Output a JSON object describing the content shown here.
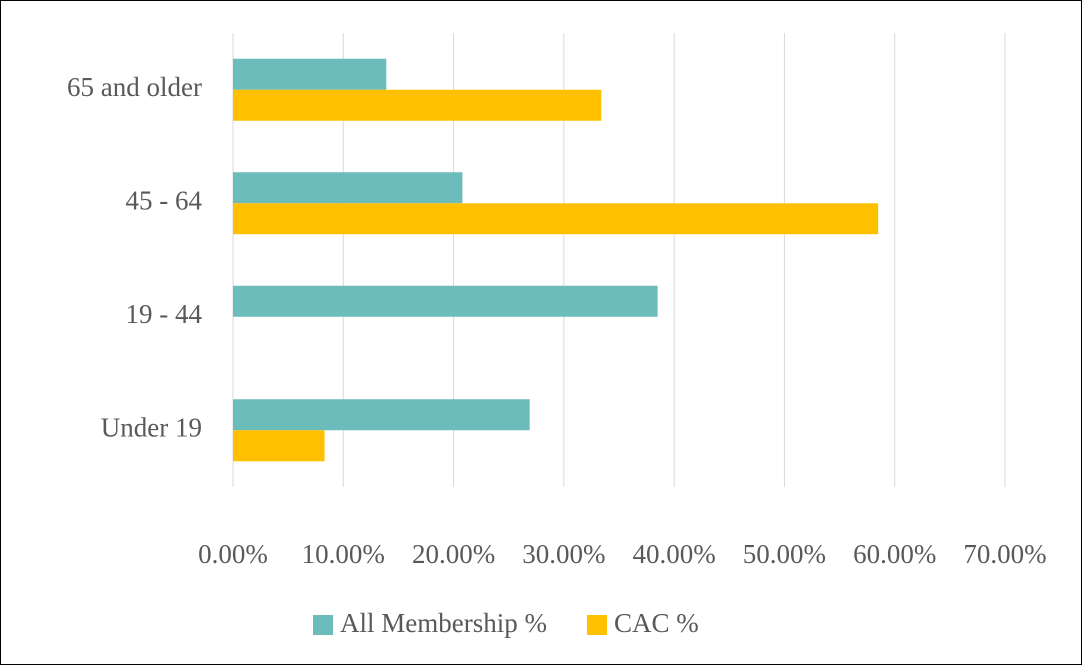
{
  "chart_data": {
    "type": "hbar",
    "categories": [
      "65 and older",
      "45 - 64",
      "19 - 44",
      "Under 19"
    ],
    "series": [
      {
        "name": "All Membership %",
        "color": "#6bbcba",
        "values": [
          13.9,
          20.8,
          38.5,
          26.9
        ]
      },
      {
        "name": "CAC %",
        "color": "#ffc000",
        "values": [
          33.4,
          58.5,
          0,
          8.3
        ]
      }
    ],
    "xlim": [
      0,
      70
    ],
    "xticks": [
      {
        "value": 0,
        "label": "0.00%"
      },
      {
        "value": 10,
        "label": "10.00%"
      },
      {
        "value": 20,
        "label": "20.00%"
      },
      {
        "value": 30,
        "label": "30.00%"
      },
      {
        "value": 40,
        "label": "40.00%"
      },
      {
        "value": 50,
        "label": "50.00%"
      },
      {
        "value": 60,
        "label": "60.00%"
      },
      {
        "value": 70,
        "label": "70.00%"
      }
    ],
    "grid": true,
    "legend": "bottom"
  }
}
